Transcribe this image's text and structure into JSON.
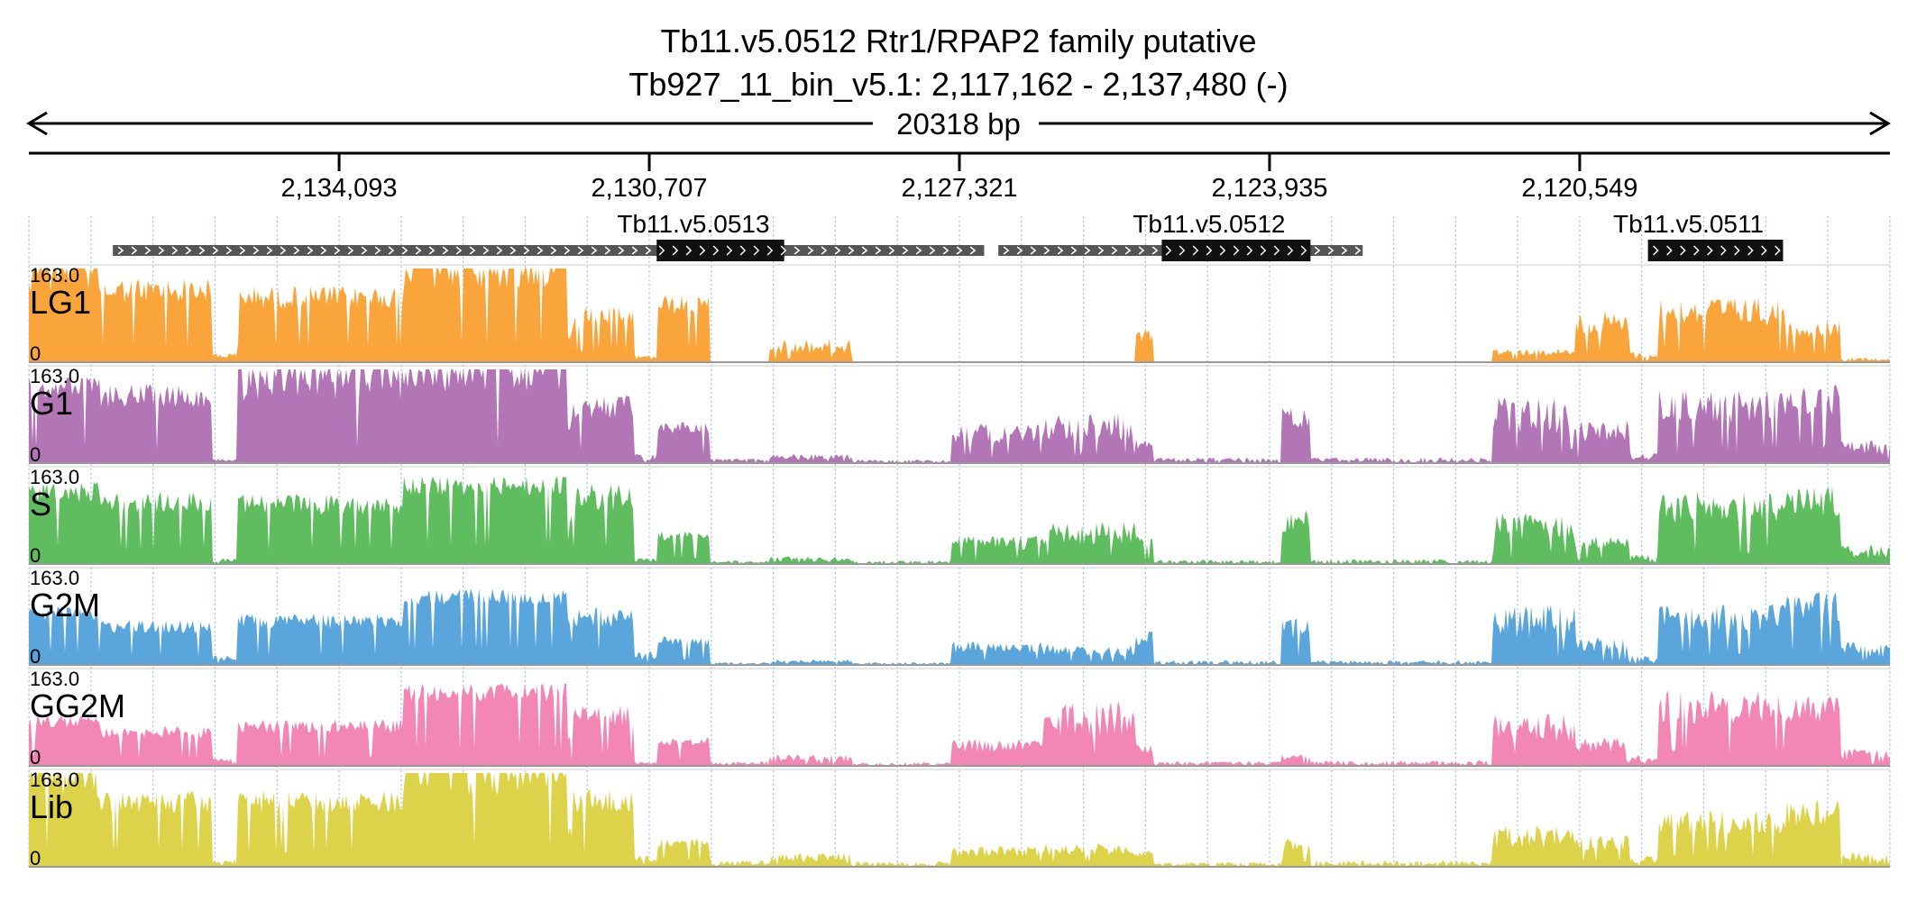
{
  "header": {
    "title_line1": "Tb11.v5.0512  Rtr1/RPAP2 family  putative",
    "title_line2": "Tb927_11_bin_v5.1: 2,117,162 - 2,137,480 (-)",
    "span_label": "20318 bp"
  },
  "chart_data": {
    "type": "area",
    "region": {
      "start": 2117162,
      "end": 2137480,
      "strand": "-",
      "length_bp": 20318
    },
    "axis": {
      "ticks": [
        {
          "value": 2134093,
          "label": "2,134,093"
        },
        {
          "value": 2130707,
          "label": "2,130,707"
        },
        {
          "value": 2127321,
          "label": "2,127,321"
        },
        {
          "value": 2123935,
          "label": "2,123,935"
        },
        {
          "value": 2120549,
          "label": "2,120,549"
        }
      ],
      "reversed": true
    },
    "genes": [
      {
        "label": "Tb11.v5.0513",
        "start": 2127051,
        "end": 2136563,
        "cds_start": 2129234,
        "cds_end": 2130626,
        "direction": "right"
      },
      {
        "label": "Tb11.v5.0512",
        "start": 2122918,
        "end": 2126896,
        "cds_start": 2123488,
        "cds_end": 2125112,
        "direction": "right"
      },
      {
        "label": "Tb11.v5.0511",
        "start": 2118498,
        "end": 2118498,
        "cds_start": 2118329,
        "cds_end": 2119804,
        "direction": "right"
      }
    ],
    "y_max_label": "163.0",
    "y_min_label": "0",
    "y_max": 163.0,
    "tracks": [
      {
        "name": "LG1",
        "color": "#f9a53c"
      },
      {
        "name": "G1",
        "color": "#b275b5"
      },
      {
        "name": "S",
        "color": "#5fbd5f"
      },
      {
        "name": "G2M",
        "color": "#5aa6dc"
      },
      {
        "name": "GG2M",
        "color": "#f286b5"
      },
      {
        "name": "Lib",
        "color": "#dcd34a"
      }
    ],
    "segments": [
      {
        "from": 2137480,
        "to": 2136700,
        "levels": [
          1.0,
          0.92,
          0.88,
          0.62,
          0.55,
          0.98
        ],
        "rough": 0.25
      },
      {
        "from": 2136700,
        "to": 2135480,
        "levels": [
          0.9,
          0.85,
          0.78,
          0.48,
          0.42,
          0.82
        ],
        "rough": 0.3
      },
      {
        "from": 2135480,
        "to": 2135200,
        "levels": [
          0.1,
          0.05,
          0.06,
          0.1,
          0.08,
          0.08
        ],
        "rough": 0.6
      },
      {
        "from": 2135200,
        "to": 2133400,
        "levels": [
          0.82,
          0.95,
          0.75,
          0.55,
          0.5,
          0.82
        ],
        "rough": 0.3
      },
      {
        "from": 2133400,
        "to": 2131600,
        "levels": [
          1.0,
          0.98,
          0.94,
          0.82,
          0.88,
          0.96
        ],
        "rough": 0.22
      },
      {
        "from": 2131600,
        "to": 2131580,
        "levels": [
          0.3,
          0.6,
          0.4,
          0.5,
          0.3,
          0.4
        ],
        "rough": 0.4
      },
      {
        "from": 2131580,
        "to": 2131550,
        "levels": [
          0.35,
          0.6,
          0.55,
          0.45,
          0.4,
          0.62
        ],
        "rough": 0.5
      },
      {
        "from": 2131550,
        "to": 2130870,
        "levels": [
          0.6,
          0.72,
          0.86,
          0.62,
          0.65,
          0.84
        ],
        "rough": 0.35
      },
      {
        "from": 2130870,
        "to": 2130620,
        "levels": [
          0.08,
          0.1,
          0.06,
          0.15,
          0.05,
          0.12
        ],
        "rough": 0.7
      },
      {
        "from": 2130620,
        "to": 2130050,
        "levels": [
          0.72,
          0.45,
          0.35,
          0.3,
          0.3,
          0.3
        ],
        "rough": 0.3
      },
      {
        "from": 2130050,
        "to": 2129400,
        "levels": [
          0.0,
          0.05,
          0.04,
          0.03,
          0.05,
          0.07
        ],
        "rough": 0.8
      },
      {
        "from": 2129400,
        "to": 2128500,
        "levels": [
          0.25,
          0.1,
          0.08,
          0.06,
          0.12,
          0.15
        ],
        "rough": 0.7
      },
      {
        "from": 2128500,
        "to": 2127400,
        "levels": [
          0.0,
          0.04,
          0.04,
          0.03,
          0.04,
          0.06
        ],
        "rough": 0.9
      },
      {
        "from": 2127400,
        "to": 2126400,
        "levels": [
          0.0,
          0.42,
          0.3,
          0.25,
          0.28,
          0.22
        ],
        "rough": 0.5
      },
      {
        "from": 2126400,
        "to": 2125400,
        "levels": [
          0.0,
          0.55,
          0.45,
          0.22,
          0.7,
          0.25
        ],
        "rough": 0.55
      },
      {
        "from": 2125400,
        "to": 2125200,
        "levels": [
          0.35,
          0.3,
          0.3,
          0.4,
          0.25,
          0.2
        ],
        "rough": 0.5
      },
      {
        "from": 2125200,
        "to": 2123800,
        "levels": [
          0.0,
          0.06,
          0.05,
          0.05,
          0.05,
          0.05
        ],
        "rough": 0.9
      },
      {
        "from": 2123800,
        "to": 2123500,
        "levels": [
          0.0,
          0.6,
          0.6,
          0.5,
          0.12,
          0.3
        ],
        "rough": 0.45
      },
      {
        "from": 2123500,
        "to": 2121500,
        "levels": [
          0.0,
          0.06,
          0.05,
          0.05,
          0.06,
          0.07
        ],
        "rough": 0.9
      },
      {
        "from": 2121500,
        "to": 2120600,
        "levels": [
          0.15,
          0.7,
          0.55,
          0.65,
          0.55,
          0.45
        ],
        "rough": 0.55
      },
      {
        "from": 2120600,
        "to": 2120000,
        "levels": [
          0.55,
          0.45,
          0.3,
          0.3,
          0.3,
          0.35
        ],
        "rough": 0.5
      },
      {
        "from": 2120000,
        "to": 2119700,
        "levels": [
          0.12,
          0.12,
          0.1,
          0.1,
          0.12,
          0.12
        ],
        "rough": 0.7
      },
      {
        "from": 2119700,
        "to": 2118300,
        "levels": [
          0.7,
          0.78,
          0.78,
          0.65,
          0.82,
          0.6
        ],
        "rough": 0.45
      },
      {
        "from": 2118300,
        "to": 2117700,
        "levels": [
          0.45,
          0.85,
          0.85,
          0.78,
          0.75,
          0.72
        ],
        "rough": 0.4
      },
      {
        "from": 2117700,
        "to": 2117162,
        "levels": [
          0.05,
          0.25,
          0.2,
          0.25,
          0.2,
          0.15
        ],
        "rough": 0.7
      }
    ]
  }
}
